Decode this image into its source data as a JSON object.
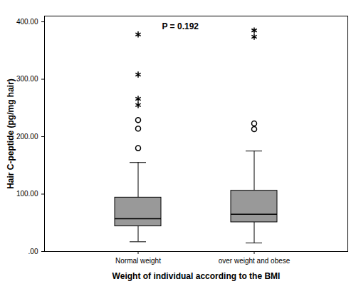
{
  "chart_data": {
    "type": "box",
    "annotation": "P = 0.192",
    "x_label": "Weight of individual according to the BMI",
    "y_label": "Hair C-peptide (pg/mg hair)",
    "categories": [
      "Normal weight",
      "over weight and obese"
    ],
    "color": "#999999",
    "min": [
      17,
      15
    ],
    "q1": [
      44,
      51
    ],
    "median": [
      57,
      65
    ],
    "q3": [
      94,
      106
    ],
    "max": [
      155,
      175
    ],
    "outliers": [
      [
        180,
        214,
        229
      ],
      [
        213,
        223
      ]
    ],
    "extremes": [
      [
        255,
        266,
        308,
        378
      ],
      [
        374,
        385
      ]
    ],
    "ylim": [
      0,
      410
    ],
    "yticks": [
      {
        "value": 0,
        "label": ".00"
      },
      {
        "value": 100,
        "label": "100.00"
      },
      {
        "value": 200,
        "label": "200.00"
      },
      {
        "value": 300,
        "label": "300.00"
      },
      {
        "value": 400,
        "label": "400.00"
      }
    ]
  }
}
